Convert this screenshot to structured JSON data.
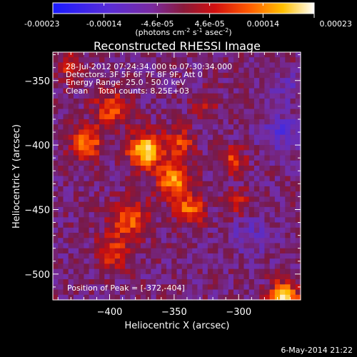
{
  "colorbar": {
    "ticks": [
      "-0.00023",
      "-0.00014",
      "-4.6e-05",
      "4.6e-05",
      "0.00014",
      "0.00023"
    ],
    "tick_values": [
      -0.00023,
      -0.00014,
      -4.6e-05,
      4.6e-05,
      0.00014,
      0.00023
    ],
    "range": [
      -0.00023,
      0.00023
    ],
    "units_prefix": "(photons cm",
    "units_exp1": "-2",
    "units_mid": " s",
    "units_exp2": "-1",
    "units_mid2": " asec",
    "units_exp3": "-2",
    "units_suffix": ")"
  },
  "annotations": {
    "time_range": "28-Jul-2012 07:24:34.000 to 07:30:34.000",
    "detectors": "Detectors: 3F 5F 6F 7F 8F 9F, Att 0",
    "energy": "Energy Range: 25.0 - 50.0 keV",
    "clean": "Clean    Total counts: 8.25E+03",
    "peak": "Position of Peak = [-372,-404]"
  },
  "footer": {
    "date": "6-May-2014 21:22"
  },
  "chart_data": {
    "type": "heatmap",
    "title": "Reconstructed RHESSI Image",
    "xlabel": "Heliocentric X (arcsec)",
    "ylabel": "Heliocentric Y (arcsec)",
    "xlim": [
      -444,
      -252
    ],
    "ylim": [
      -520,
      -328
    ],
    "xticks": [
      -400,
      -350,
      -300
    ],
    "yticks": [
      -350,
      -400,
      -450,
      -500
    ],
    "xtick_labels": [
      "−400",
      "−350",
      "−300"
    ],
    "ytick_labels": [
      "−350",
      "−400",
      "−450",
      "−500"
    ],
    "pixel_size_arcsec": 4,
    "colormap": "RHESSI red-temperature (blue-purple-red-yellow-white)",
    "peak": [
      -372,
      -404
    ],
    "sources": [
      {
        "x": -372,
        "y": -404,
        "amplitude": 1.0,
        "sigma": 9
      },
      {
        "x": -398,
        "y": -372,
        "amplitude": 0.55,
        "sigma": 9
      },
      {
        "x": -418,
        "y": -398,
        "amplitude": 0.6,
        "sigma": 9
      },
      {
        "x": -350,
        "y": -428,
        "amplitude": 0.75,
        "sigma": 9
      },
      {
        "x": -338,
        "y": -450,
        "amplitude": 0.6,
        "sigma": 8
      },
      {
        "x": -385,
        "y": -458,
        "amplitude": 0.55,
        "sigma": 10
      },
      {
        "x": -398,
        "y": -484,
        "amplitude": 0.45,
        "sigma": 9
      },
      {
        "x": -345,
        "y": -398,
        "amplitude": 0.45,
        "sigma": 8
      },
      {
        "x": -305,
        "y": -412,
        "amplitude": 0.45,
        "sigma": 7
      },
      {
        "x": -302,
        "y": -445,
        "amplitude": 0.4,
        "sigma": 7
      },
      {
        "x": -265,
        "y": -518,
        "amplitude": 0.9,
        "sigma": 8
      },
      {
        "x": -432,
        "y": -340,
        "amplitude": 0.3,
        "sigma": 8
      },
      {
        "x": -325,
        "y": -368,
        "amplitude": 0.25,
        "sigma": 7
      }
    ],
    "negative_regions": [
      {
        "x": -268,
        "y": -390,
        "amplitude": -0.35,
        "sigma": 10
      },
      {
        "x": -290,
        "y": -470,
        "amplitude": -0.2,
        "sigma": 12
      },
      {
        "x": -262,
        "y": -355,
        "amplitude": -0.2,
        "sigma": 8
      }
    ],
    "background_level": -0.12,
    "noise_amplitude": 0.18
  }
}
